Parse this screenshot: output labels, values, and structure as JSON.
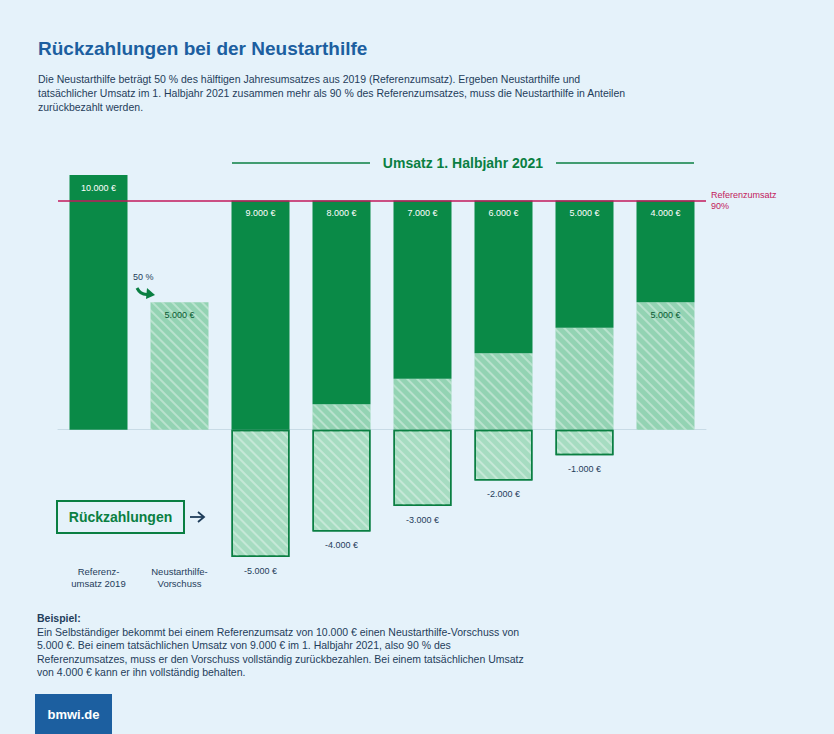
{
  "chart_data": {
    "type": "bar",
    "title": "Rückzahlungen bei der Neustarthilfe",
    "subtitle": "Die Neustarthilfe beträgt 50 % des hälftigen Jahresumsatzes aus 2019 (Referenzumsatz). Ergeben Neustarthilfe und tatsächlicher Umsatz im 1. Halbjahr 2021 zusammen mehr als 90 % des Referenzumsatzes, muss die Neustarthilfe in Anteilen zurückbezahlt werden.",
    "group_label": "Umsatz 1. Halbjahr 2021",
    "categories": [
      "Referenz-\numsatz 2019",
      "Neustarthilfe-\nVorschuss",
      null,
      null,
      null,
      null,
      null,
      null
    ],
    "series": [
      {
        "color": "#93d3b3",
        "values": [
          null,
          5000,
          0,
          1000,
          2000,
          3000,
          4000,
          5000
        ],
        "value_labels": [
          null,
          "5.000 €",
          null,
          null,
          null,
          null,
          null,
          "5.000 €"
        ]
      },
      {
        "color": "#0a8a47",
        "values": [
          10000,
          null,
          9000,
          8000,
          7000,
          6000,
          5000,
          4000
        ],
        "value_labels": [
          "10.000 €",
          null,
          "9.000 €",
          "8.000 €",
          "7.000 €",
          "6.000 €",
          "5.000 €",
          "4.000 €"
        ]
      },
      {
        "color": "#a6dcc1",
        "values": [
          null,
          null,
          -5000,
          -4000,
          -3000,
          -2000,
          -1000,
          null
        ],
        "value_labels": [
          null,
          null,
          "-5.000 €",
          "-4.000 €",
          "-3.000 €",
          "-2.000 €",
          "-1.000 €",
          null
        ]
      }
    ],
    "reference_line": {
      "value": 9000,
      "label": "Referenzumsatz\n90%"
    },
    "annotations": {
      "share": "50 %",
      "repayments": "Rückzahlungen",
      "example_title": "Beispiel:",
      "example_text": "Ein Selbständiger bekommt bei einem Referenzumsatz von 10.000 € einen Neustarthilfe-Vorschuss von 5.000 €. Bei einem tatsächlichen Umsatz von 9.000 € im 1. Halbjahr 2021, also 90 % des Referenzumsatzes, muss er den Vorschuss vollständig zurückbezahlen. Bei einem tatsächlichen Umsatz von 4.000 € kann er ihn vollständig behalten.",
      "footer": "bmwi.de"
    },
    "ylim": [
      -5000,
      10000
    ],
    "stacked": true,
    "data_labels": true,
    "grid": false,
    "tick_labels": "x"
  }
}
